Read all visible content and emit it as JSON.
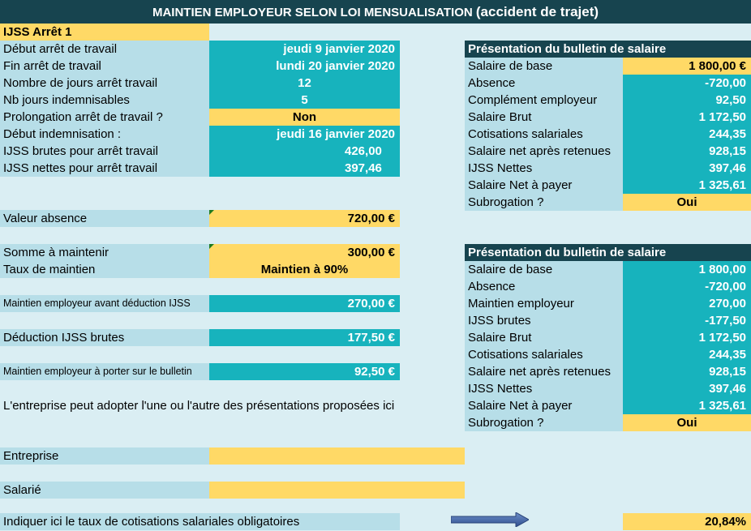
{
  "title": {
    "main": "MAINTIEN EMPLOYEUR SELON LOI MENSUALISATION ",
    "sub": "(accident de trajet)"
  },
  "left": {
    "header": "IJSS Arrêt 1",
    "rows": [
      {
        "label": "Début arrêt de travail",
        "value": "jeudi 9 janvier 2020"
      },
      {
        "label": "Fin arrêt de travail",
        "value": "lundi 20 janvier 2020"
      },
      {
        "label": "Nombre de jours arrêt travail",
        "value": "12"
      },
      {
        "label": "Nb jours indemnisables",
        "value": "5"
      },
      {
        "label": "Prolongation arrêt de travail ?",
        "value": "Non"
      },
      {
        "label": "Début indemnisation :",
        "value": "jeudi 16 janvier 2020"
      },
      {
        "label": "IJSS brutes pour arrêt travail",
        "value": "426,00"
      },
      {
        "label": "IJSS nettes pour arrêt travail",
        "value": "397,46"
      }
    ],
    "valeur_absence": {
      "label": "Valeur absence",
      "value": "720,00 €"
    },
    "somme_maintenir": {
      "label": "Somme à maintenir",
      "value": "300,00 €"
    },
    "taux_maintien": {
      "label": "Taux de maintien",
      "value": "Maintien à 90%"
    },
    "maintien_avant": {
      "label": "Maintien employeur avant déduction IJSS",
      "value": "270,00 €"
    },
    "deduction": {
      "label": "Déduction IJSS brutes",
      "value": "177,50 €"
    },
    "maintien_bulletin": {
      "label": "Maintien employeur à porter sur le bulletin",
      "value": "92,50 €"
    },
    "note": "L'entreprise peut adopter l'une ou l'autre des présentations proposées ici",
    "entreprise": {
      "label": "Entreprise",
      "value": ""
    },
    "salarie": {
      "label": "Salarié",
      "value": ""
    },
    "taux_cotisations": {
      "label": "Indiquer ici le taux de cotisations salariales obligatoires",
      "value": "20,84%"
    }
  },
  "bulletin1": {
    "header": "Présentation du bulletin de salaire",
    "rows": [
      {
        "label": "Salaire de base",
        "value": "1 800,00 €"
      },
      {
        "label": "Absence",
        "value": "-720,00"
      },
      {
        "label": "Complément employeur",
        "value": "92,50"
      },
      {
        "label": "Salaire Brut",
        "value": "1 172,50"
      },
      {
        "label": "Cotisations salariales",
        "value": "244,35"
      },
      {
        "label": "Salaire net après retenues",
        "value": "928,15"
      },
      {
        "label": "IJSS Nettes",
        "value": "397,46"
      },
      {
        "label": "Salaire Net à payer",
        "value": "1 325,61"
      },
      {
        "label": "Subrogation ?",
        "value": "Oui"
      }
    ]
  },
  "bulletin2": {
    "header": "Présentation du bulletin de salaire",
    "rows": [
      {
        "label": "Salaire de base",
        "value": "1 800,00"
      },
      {
        "label": "Absence",
        "value": "-720,00"
      },
      {
        "label": "Maintien employeur",
        "value": "270,00"
      },
      {
        "label": "IJSS brutes",
        "value": "-177,50"
      },
      {
        "label": "Salaire Brut",
        "value": "1 172,50"
      },
      {
        "label": "Cotisations salariales",
        "value": "244,35"
      },
      {
        "label": "Salaire net après retenues",
        "value": "928,15"
      },
      {
        "label": "IJSS Nettes",
        "value": "397,46"
      },
      {
        "label": "Salaire Net à payer",
        "value": "1 325,61"
      },
      {
        "label": "Subrogation ?",
        "value": "Oui"
      }
    ]
  },
  "colors": {
    "title_bg": "#17444f",
    "teal": "#17b3bd",
    "gold": "#ffd966",
    "label_bg": "#b7dee8",
    "page_bg": "#daeef3"
  }
}
